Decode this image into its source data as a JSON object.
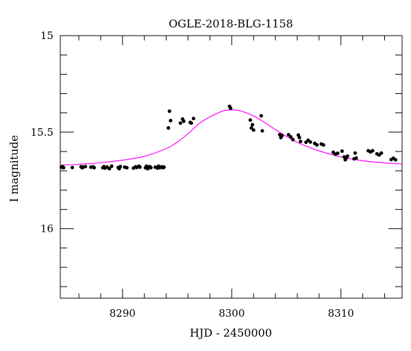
{
  "chart_data": {
    "type": "scatter",
    "title": "OGLE-2018-BLG-1158",
    "xlabel": "HJD - 2450000",
    "ylabel": "I magnitude",
    "xlim": [
      8284.3,
      8315.6
    ],
    "ylim": [
      15,
      16.36
    ],
    "y_inverted": true,
    "x_ticks": [
      8290,
      8300,
      8310
    ],
    "x_tick_labels": [
      "8290",
      "8300",
      "8310"
    ],
    "x_minor_step": 2,
    "y_ticks": [
      15,
      15.5,
      16
    ],
    "y_tick_labels": [
      "15",
      "15.5",
      "16"
    ],
    "y_minor_step": 0.1,
    "grid": false,
    "colors": {
      "points": "#000000",
      "model": "#ff00ff"
    },
    "model": {
      "style": "line",
      "x": [
        8284.3,
        8286,
        8288,
        8290,
        8292,
        8294,
        8295,
        8296,
        8297,
        8298,
        8299,
        8299.5,
        8300,
        8300.5,
        8301,
        8302,
        8303,
        8304,
        8305,
        8306,
        8307,
        8308,
        8310,
        8312,
        8314,
        8315.6
      ],
      "y": [
        15.671,
        15.666,
        15.658,
        15.645,
        15.625,
        15.585,
        15.552,
        15.508,
        15.456,
        15.421,
        15.394,
        15.387,
        15.384,
        15.387,
        15.393,
        15.416,
        15.449,
        15.487,
        15.521,
        15.553,
        15.576,
        15.597,
        15.628,
        15.648,
        15.659,
        15.665
      ]
    },
    "series": [
      {
        "style": "points",
        "x": [
          8284.4,
          8284.5,
          8284.6,
          8285.4,
          8286.2,
          8286.3,
          8286.4,
          8286.6,
          8287.1,
          8287.3,
          8287.4,
          8288.2,
          8288.3,
          8288.4,
          8288.6,
          8288.8,
          8289.0,
          8289.6,
          8289.7,
          8289.8,
          8290.2,
          8290.4,
          8291.0,
          8291.2,
          8291.3,
          8291.5,
          8291.6,
          8292.1,
          8292.2,
          8292.3,
          8292.4,
          8292.5,
          8292.6,
          8293.0,
          8293.2,
          8293.3,
          8293.4,
          8293.6,
          8293.7,
          8293.8,
          8294.2,
          8294.3,
          8294.4,
          8295.3,
          8295.5,
          8295.6,
          8296.2,
          8296.3,
          8296.5,
          8299.8,
          8299.9,
          8301.7,
          8301.8,
          8301.9,
          8302.0,
          8302.7,
          8302.8,
          8304.4,
          8304.5,
          8304.6,
          8305.2,
          8305.4,
          8305.6,
          8306.1,
          8306.2,
          8306.3,
          8306.8,
          8307.0,
          8307.2,
          8307.6,
          8307.8,
          8308.2,
          8308.4,
          8309.3,
          8309.5,
          8309.7,
          8310.1,
          8310.3,
          8310.4,
          8310.5,
          8310.6,
          8311.2,
          8311.3,
          8311.4,
          8312.5,
          8312.7,
          8312.9,
          8313.3,
          8313.5,
          8313.7,
          8314.6,
          8314.8,
          8315.0
        ],
        "y": [
          15.681,
          15.678,
          15.684,
          15.683,
          15.679,
          15.684,
          15.681,
          15.678,
          15.681,
          15.679,
          15.684,
          15.684,
          15.678,
          15.686,
          15.681,
          15.689,
          15.676,
          15.683,
          15.689,
          15.678,
          15.681,
          15.684,
          15.686,
          15.679,
          15.683,
          15.676,
          15.681,
          15.684,
          15.676,
          15.689,
          15.681,
          15.678,
          15.684,
          15.681,
          15.686,
          15.676,
          15.684,
          15.679,
          15.684,
          15.681,
          15.478,
          15.391,
          15.44,
          15.453,
          15.432,
          15.443,
          15.449,
          15.453,
          15.429,
          15.366,
          15.376,
          15.437,
          15.478,
          15.461,
          15.489,
          15.415,
          15.493,
          15.513,
          15.528,
          15.518,
          15.513,
          15.524,
          15.538,
          15.515,
          15.528,
          15.548,
          15.552,
          15.542,
          15.551,
          15.558,
          15.566,
          15.561,
          15.566,
          15.604,
          15.614,
          15.609,
          15.598,
          15.628,
          15.643,
          15.632,
          15.624,
          15.638,
          15.608,
          15.634,
          15.596,
          15.602,
          15.596,
          15.612,
          15.618,
          15.608,
          15.642,
          15.635,
          15.643
        ]
      }
    ]
  }
}
